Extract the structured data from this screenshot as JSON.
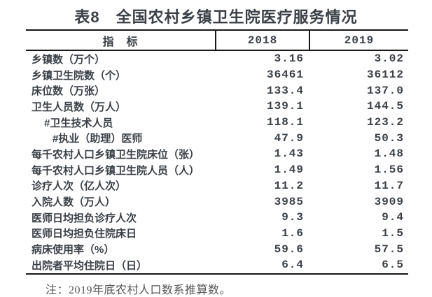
{
  "title": "表8　全国农村乡镇卫生院医疗服务情况",
  "table": {
    "columns": [
      "指　标",
      "2018",
      "2019"
    ],
    "rows": [
      {
        "label": "乡镇数（万个）",
        "indent": 0,
        "y2018": "3.16",
        "y2019": "3.02"
      },
      {
        "label": "乡镇卫生院数（个）",
        "indent": 0,
        "y2018": "36461",
        "y2019": "36112"
      },
      {
        "label": "床位数（万张）",
        "indent": 0,
        "y2018": "133.4",
        "y2019": "137.0"
      },
      {
        "label": "卫生人员数（万人）",
        "indent": 0,
        "y2018": "139.1",
        "y2019": "144.5"
      },
      {
        "label": "#卫生技术人员",
        "indent": 1,
        "y2018": "118.1",
        "y2019": "123.2"
      },
      {
        "label": "#执业（助理）医师",
        "indent": 2,
        "y2018": "47.9",
        "y2019": "50.3"
      },
      {
        "label": "每千农村人口乡镇卫生院床位（张）",
        "indent": 0,
        "y2018": "1.43",
        "y2019": "1.48"
      },
      {
        "label": "每千农村人口乡镇卫生院人员（人）",
        "indent": 0,
        "y2018": "1.49",
        "y2019": "1.56"
      },
      {
        "label": "诊疗人次（亿人次）",
        "indent": 0,
        "y2018": "11.2",
        "y2019": "11.7"
      },
      {
        "label": "入院人数（万人）",
        "indent": 0,
        "y2018": "3985",
        "y2019": "3909"
      },
      {
        "label": "医师日均担负诊疗人次",
        "indent": 0,
        "y2018": "9.3",
        "y2019": "9.4"
      },
      {
        "label": "医师日均担负住院床日",
        "indent": 0,
        "y2018": "1.6",
        "y2019": "1.5"
      },
      {
        "label": "病床使用率（%）",
        "indent": 0,
        "y2018": "59.6",
        "y2019": "57.5"
      },
      {
        "label": "出院者平均住院日（日）",
        "indent": 0,
        "y2018": "6.4",
        "y2019": "6.5"
      }
    ]
  },
  "note": "注：2019年底农村人口数系推算数。",
  "colors": {
    "text": "#3b4046",
    "border": "#161616",
    "note_text": "#565656",
    "background": "#ffffff"
  }
}
